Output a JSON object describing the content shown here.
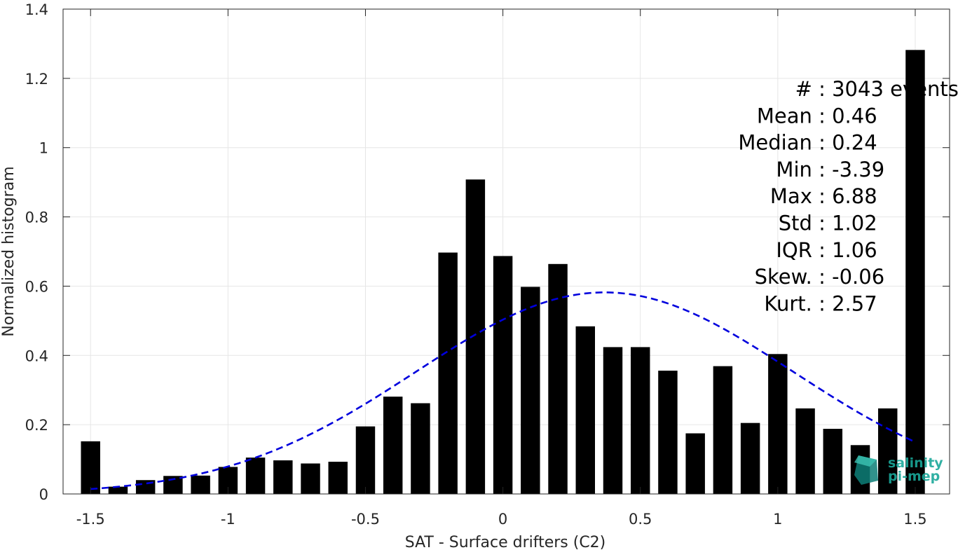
{
  "chart_data": {
    "type": "bar",
    "xlabel": "SAT - Surface drifters (C2)",
    "ylabel": "Normalized histogram",
    "xlim": [
      -1.6,
      1.625
    ],
    "ylim": [
      0,
      1.4
    ],
    "grid": true,
    "x_ticks": [
      -1.5,
      -1,
      -0.5,
      0,
      0.5,
      1,
      1.5
    ],
    "x_tick_labels": [
      "-1.5",
      "-1",
      "-0.5",
      "0",
      "0.5",
      "1",
      "1.5"
    ],
    "y_ticks": [
      0,
      0.2,
      0.4,
      0.6,
      0.8,
      1,
      1.2,
      1.4
    ],
    "y_tick_labels": [
      "0",
      "0.2",
      "0.4",
      "0.6",
      "0.8",
      "1",
      "1.2",
      "1.4"
    ],
    "bar_width": 0.07,
    "colors": {
      "bars": "#000000",
      "fit": "#0000dd",
      "grid": "#e6e6e6",
      "axis": "#262626"
    },
    "bars": [
      {
        "x": -1.5,
        "y": 0.152
      },
      {
        "x": -1.4,
        "y": 0.021
      },
      {
        "x": -1.3,
        "y": 0.04
      },
      {
        "x": -1.2,
        "y": 0.052
      },
      {
        "x": -1.1,
        "y": 0.053
      },
      {
        "x": -1.0,
        "y": 0.078
      },
      {
        "x": -0.9,
        "y": 0.105
      },
      {
        "x": -0.8,
        "y": 0.097
      },
      {
        "x": -0.7,
        "y": 0.088
      },
      {
        "x": -0.6,
        "y": 0.093
      },
      {
        "x": -0.5,
        "y": 0.195
      },
      {
        "x": -0.4,
        "y": 0.281
      },
      {
        "x": -0.3,
        "y": 0.262
      },
      {
        "x": -0.2,
        "y": 0.697
      },
      {
        "x": -0.1,
        "y": 0.908
      },
      {
        "x": 0.0,
        "y": 0.687
      },
      {
        "x": 0.1,
        "y": 0.598
      },
      {
        "x": 0.2,
        "y": 0.664
      },
      {
        "x": 0.3,
        "y": 0.484
      },
      {
        "x": 0.4,
        "y": 0.424
      },
      {
        "x": 0.5,
        "y": 0.424
      },
      {
        "x": 0.6,
        "y": 0.356
      },
      {
        "x": 0.7,
        "y": 0.175
      },
      {
        "x": 0.8,
        "y": 0.369
      },
      {
        "x": 0.9,
        "y": 0.205
      },
      {
        "x": 1.0,
        "y": 0.404
      },
      {
        "x": 1.1,
        "y": 0.247
      },
      {
        "x": 1.2,
        "y": 0.188
      },
      {
        "x": 1.3,
        "y": 0.141
      },
      {
        "x": 1.4,
        "y": 0.247
      },
      {
        "x": 1.5,
        "y": 1.282
      }
    ],
    "fit_curve": {
      "style": "dashed",
      "mean": 0.37,
      "sigma": 0.686,
      "peak": 0.582,
      "x_range": [
        -1.5,
        1.5
      ]
    },
    "stats": [
      {
        "label": "#",
        "sep": " : ",
        "value": "3043 events"
      },
      {
        "label": "Mean",
        "sep": " : ",
        "value": "0.46"
      },
      {
        "label": "Median",
        "sep": " : ",
        "value": "0.24"
      },
      {
        "label": "Min",
        "sep": " : ",
        "value": "-3.39"
      },
      {
        "label": "Max",
        "sep": " : ",
        "value": "6.88"
      },
      {
        "label": "Std",
        "sep": " : ",
        "value": "1.02"
      },
      {
        "label": "IQR",
        "sep": " : ",
        "value": "1.06"
      },
      {
        "label": "Skew.",
        "sep": " : ",
        "value": "-0.06"
      },
      {
        "label": "Kurt.",
        "sep": " : ",
        "value": "2.57"
      }
    ]
  },
  "logo": {
    "line1": "salinity",
    "line2": "pi-mep",
    "color": "#1aa89a"
  }
}
